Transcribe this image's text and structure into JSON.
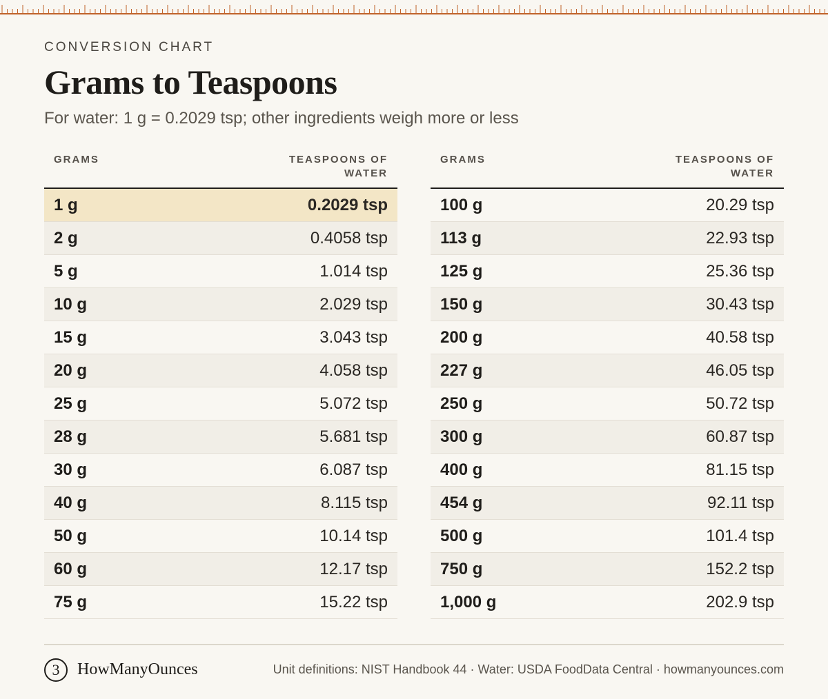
{
  "header": {
    "eyebrow": "CONVERSION CHART",
    "title": "Grams to Teaspoons",
    "subtitle": "For water: 1 g = 0.2029 tsp; other ingredients weigh more or less"
  },
  "columns": {
    "grams": "GRAMS",
    "teaspoons_line1": "TEASPOONS OF",
    "teaspoons_line2": "WATER"
  },
  "left_rows": [
    {
      "g": "1 g",
      "tsp": "0.2029 tsp"
    },
    {
      "g": "2 g",
      "tsp": "0.4058 tsp"
    },
    {
      "g": "5 g",
      "tsp": "1.014 tsp"
    },
    {
      "g": "10 g",
      "tsp": "2.029 tsp"
    },
    {
      "g": "15 g",
      "tsp": "3.043 tsp"
    },
    {
      "g": "20 g",
      "tsp": "4.058 tsp"
    },
    {
      "g": "25 g",
      "tsp": "5.072 tsp"
    },
    {
      "g": "28 g",
      "tsp": "5.681 tsp"
    },
    {
      "g": "30 g",
      "tsp": "6.087 tsp"
    },
    {
      "g": "40 g",
      "tsp": "8.115 tsp"
    },
    {
      "g": "50 g",
      "tsp": "10.14 tsp"
    },
    {
      "g": "60 g",
      "tsp": "12.17 tsp"
    },
    {
      "g": "75 g",
      "tsp": "15.22 tsp"
    }
  ],
  "right_rows": [
    {
      "g": "100 g",
      "tsp": "20.29 tsp"
    },
    {
      "g": "113 g",
      "tsp": "22.93 tsp"
    },
    {
      "g": "125 g",
      "tsp": "25.36 tsp"
    },
    {
      "g": "150 g",
      "tsp": "30.43 tsp"
    },
    {
      "g": "200 g",
      "tsp": "40.58 tsp"
    },
    {
      "g": "227 g",
      "tsp": "46.05 tsp"
    },
    {
      "g": "250 g",
      "tsp": "50.72 tsp"
    },
    {
      "g": "300 g",
      "tsp": "60.87 tsp"
    },
    {
      "g": "400 g",
      "tsp": "81.15 tsp"
    },
    {
      "g": "454 g",
      "tsp": "92.11 tsp"
    },
    {
      "g": "500 g",
      "tsp": "101.4 tsp"
    },
    {
      "g": "750 g",
      "tsp": "152.2 tsp"
    },
    {
      "g": "1,000 g",
      "tsp": "202.9 tsp"
    }
  ],
  "footer": {
    "logo_glyph": "3",
    "brand": "HowManyOunces",
    "source": "Unit definitions: NIST Handbook 44 · Water: USDA FoodData Central · howmanyounces.com"
  },
  "colors": {
    "background": "#f9f7f2",
    "ruler": "#c0632a",
    "highlight_row": "#f3e6c6",
    "alt_row": "#f1eee7"
  }
}
